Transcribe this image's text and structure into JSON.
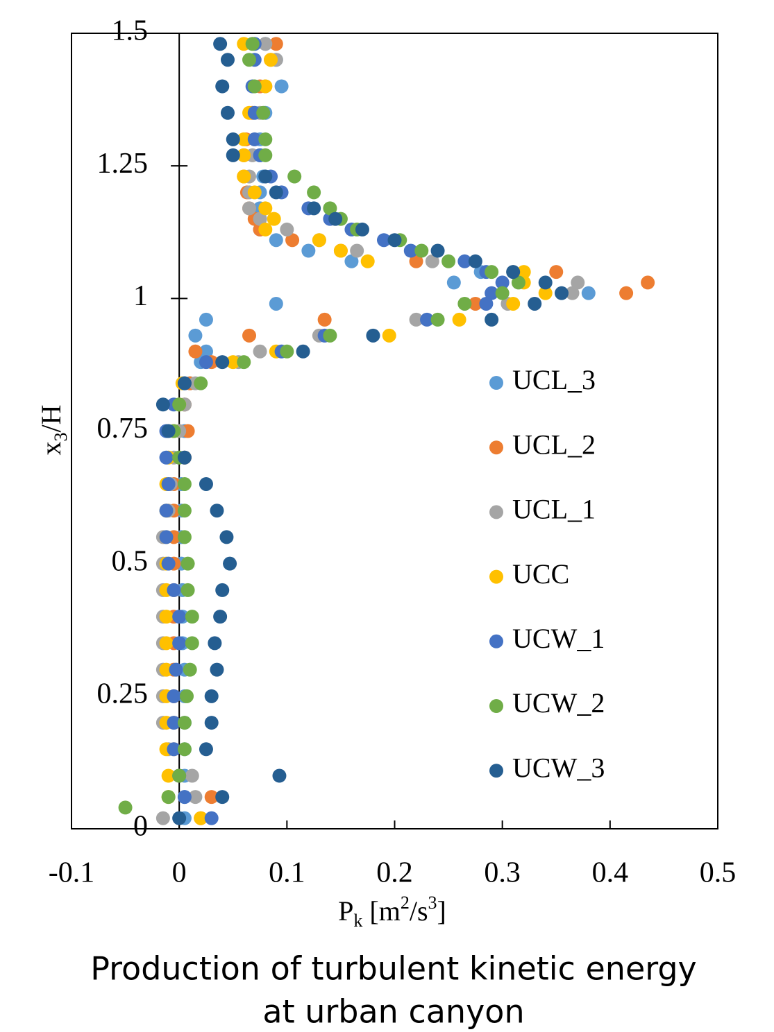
{
  "chart_data": {
    "type": "scatter",
    "title": [
      "Production of turbulent kinetic energy",
      "at urban canyon"
    ],
    "xlabel": [
      "P",
      "k",
      " [m",
      "2",
      "/s",
      "3",
      "]"
    ],
    "ylabel": [
      "x",
      "3",
      "/H"
    ],
    "xlim": [
      -0.1,
      0.5
    ],
    "ylim": [
      0,
      1.5
    ],
    "xticks": [
      -0.1,
      0,
      0.1,
      0.2,
      0.3,
      0.4,
      0.5
    ],
    "yticks": [
      0,
      0.25,
      0.5,
      0.75,
      1,
      1.25,
      1.5
    ],
    "legend": "right",
    "series": [
      {
        "name": "UCL_3",
        "color": "#5b9bd5",
        "x": [
          0.005,
          0.005,
          0.005,
          0.005,
          0.005,
          0.005,
          0.005,
          0.003,
          0.003,
          0.003,
          0.002,
          0.002,
          0.002,
          0.002,
          0.005,
          0.005,
          0.005,
          0.01,
          0.02,
          0.025,
          0.015,
          0.025,
          0.09,
          0.38,
          0.255,
          0.28,
          0.16,
          0.12,
          0.09,
          0.075,
          0.075,
          0.075,
          0.075,
          0.078,
          0.075,
          0.075,
          0.08,
          0.095,
          0.09,
          0.08
        ],
        "y": [
          0.02,
          0.06,
          0.1,
          0.15,
          0.2,
          0.25,
          0.3,
          0.35,
          0.4,
          0.45,
          0.5,
          0.55,
          0.6,
          0.65,
          0.7,
          0.75,
          0.8,
          0.84,
          0.88,
          0.9,
          0.93,
          0.96,
          0.99,
          1.01,
          1.03,
          1.05,
          1.07,
          1.09,
          1.11,
          1.13,
          1.15,
          1.17,
          1.2,
          1.23,
          1.27,
          1.3,
          1.35,
          1.4,
          1.45,
          1.48
        ]
      },
      {
        "name": "UCL_2",
        "color": "#ed7d31",
        "x": [
          0.02,
          0.03,
          0,
          -0.005,
          -0.005,
          -0.005,
          -0.005,
          -0.005,
          -0.005,
          -0.005,
          -0.005,
          -0.005,
          -0.005,
          -0.005,
          0.005,
          0.008,
          0.005,
          0.01,
          0.03,
          0.015,
          0.065,
          0.135,
          0.275,
          0.415,
          0.435,
          0.35,
          0.22,
          0.15,
          0.105,
          0.075,
          0.07,
          0.065,
          0.063,
          0.06,
          0.06,
          0.062,
          0.068,
          0.075,
          0.085,
          0.09
        ],
        "y": [
          0.02,
          0.06,
          0.1,
          0.15,
          0.2,
          0.25,
          0.3,
          0.35,
          0.4,
          0.45,
          0.5,
          0.55,
          0.6,
          0.65,
          0.7,
          0.75,
          0.8,
          0.84,
          0.88,
          0.9,
          0.93,
          0.96,
          0.99,
          1.01,
          1.03,
          1.05,
          1.07,
          1.09,
          1.11,
          1.13,
          1.15,
          1.17,
          1.2,
          1.23,
          1.27,
          1.3,
          1.35,
          1.4,
          1.45,
          1.48
        ]
      },
      {
        "name": "UCL_1",
        "color": "#a5a5a5",
        "x": [
          -0.015,
          0.015,
          0.012,
          -0.01,
          -0.015,
          -0.015,
          -0.015,
          -0.015,
          -0.015,
          -0.015,
          -0.015,
          -0.015,
          -0.01,
          -0.008,
          -0.005,
          0,
          0.005,
          0.015,
          0.055,
          0.075,
          0.13,
          0.22,
          0.305,
          0.365,
          0.37,
          0.31,
          0.235,
          0.165,
          0.13,
          0.1,
          0.075,
          0.065,
          0.065,
          0.065,
          0.068,
          0.07,
          0.075,
          0.08,
          0.09,
          0.08
        ],
        "y": [
          0.02,
          0.06,
          0.1,
          0.15,
          0.2,
          0.25,
          0.3,
          0.35,
          0.4,
          0.45,
          0.5,
          0.55,
          0.6,
          0.65,
          0.7,
          0.75,
          0.8,
          0.84,
          0.88,
          0.9,
          0.93,
          0.96,
          0.99,
          1.01,
          1.03,
          1.05,
          1.07,
          1.09,
          1.11,
          1.13,
          1.15,
          1.17,
          1.2,
          1.23,
          1.27,
          1.3,
          1.35,
          1.4,
          1.45,
          1.48
        ]
      },
      {
        "name": "UCC",
        "color": "#ffc000",
        "x": [
          0.02,
          -0.01,
          -0.01,
          -0.012,
          -0.012,
          -0.012,
          -0.012,
          -0.012,
          -0.012,
          -0.012,
          -0.012,
          -0.012,
          -0.012,
          -0.012,
          -0.01,
          -0.005,
          0,
          0.003,
          0.05,
          0.09,
          0.195,
          0.26,
          0.31,
          0.34,
          0.32,
          0.32,
          0.175,
          0.15,
          0.13,
          0.08,
          0.088,
          0.08,
          0.07,
          0.06,
          0.06,
          0.06,
          0.065,
          0.08,
          0.085,
          0.06
        ],
        "y": [
          0.02,
          0.06,
          0.1,
          0.15,
          0.2,
          0.25,
          0.3,
          0.35,
          0.4,
          0.45,
          0.5,
          0.55,
          0.6,
          0.65,
          0.7,
          0.75,
          0.8,
          0.84,
          0.88,
          0.9,
          0.93,
          0.96,
          0.99,
          1.01,
          1.03,
          1.05,
          1.07,
          1.09,
          1.11,
          1.13,
          1.15,
          1.17,
          1.2,
          1.23,
          1.27,
          1.3,
          1.35,
          1.4,
          1.45,
          1.48
        ]
      },
      {
        "name": "UCW_1",
        "color": "#4472c4",
        "x": [
          0.03,
          0.005,
          0,
          -0.005,
          -0.005,
          -0.005,
          -0.003,
          0,
          0,
          -0.005,
          -0.01,
          -0.012,
          -0.012,
          -0.01,
          -0.012,
          -0.012,
          -0.005,
          0.005,
          0.025,
          0.095,
          0.135,
          0.23,
          0.285,
          0.29,
          0.3,
          0.285,
          0.265,
          0.215,
          0.19,
          0.16,
          0.14,
          0.12,
          0.095,
          0.085,
          0.075,
          0.07,
          0.07,
          0.068,
          0.07,
          0.07
        ],
        "y": [
          0.02,
          0.06,
          0.1,
          0.15,
          0.2,
          0.25,
          0.3,
          0.35,
          0.4,
          0.45,
          0.5,
          0.55,
          0.6,
          0.65,
          0.7,
          0.75,
          0.8,
          0.84,
          0.88,
          0.9,
          0.93,
          0.96,
          0.99,
          1.01,
          1.03,
          1.05,
          1.07,
          1.09,
          1.11,
          1.13,
          1.15,
          1.17,
          1.2,
          1.23,
          1.27,
          1.3,
          1.35,
          1.4,
          1.45,
          1.48
        ]
      },
      {
        "name": "UCW_2",
        "color": "#70ad47",
        "x": [
          -0.05,
          -0.01,
          0,
          0.005,
          0.005,
          0.007,
          0.01,
          0.012,
          0.012,
          0.008,
          0.008,
          0.005,
          0.005,
          0.005,
          0,
          -0.005,
          0,
          0.02,
          0.06,
          0.1,
          0.14,
          0.24,
          0.265,
          0.3,
          0.315,
          0.29,
          0.25,
          0.225,
          0.205,
          0.165,
          0.15,
          0.14,
          0.125,
          0.107,
          0.08,
          0.08,
          0.078,
          0.07,
          0.065,
          0.068
        ],
        "y": [
          0.04,
          0.06,
          0.1,
          0.15,
          0.2,
          0.25,
          0.3,
          0.35,
          0.4,
          0.45,
          0.5,
          0.55,
          0.6,
          0.65,
          0.7,
          0.75,
          0.8,
          0.84,
          0.88,
          0.9,
          0.93,
          0.96,
          0.99,
          1.01,
          1.03,
          1.05,
          1.07,
          1.09,
          1.11,
          1.13,
          1.15,
          1.17,
          1.2,
          1.23,
          1.27,
          1.3,
          1.35,
          1.4,
          1.45,
          1.48
        ]
      },
      {
        "name": "UCW_3",
        "color": "#255e91",
        "x": [
          0,
          0.04,
          0.093,
          0.025,
          0.03,
          0.03,
          0.035,
          0.033,
          0.038,
          0.04,
          0.047,
          0.044,
          0.035,
          0.025,
          0.005,
          -0.01,
          -0.015,
          0.005,
          0.04,
          0.115,
          0.18,
          0.29,
          0.33,
          0.355,
          0.34,
          0.31,
          0.275,
          0.24,
          0.2,
          0.17,
          0.145,
          0.125,
          0.09,
          0.08,
          0.05,
          0.05,
          0.045,
          0.04,
          0.045,
          0.038
        ],
        "y": [
          0.02,
          0.06,
          0.1,
          0.15,
          0.2,
          0.25,
          0.3,
          0.35,
          0.4,
          0.45,
          0.5,
          0.55,
          0.6,
          0.65,
          0.7,
          0.75,
          0.8,
          0.84,
          0.88,
          0.9,
          0.93,
          0.96,
          0.99,
          1.01,
          1.03,
          1.05,
          1.07,
          1.09,
          1.11,
          1.13,
          1.15,
          1.17,
          1.2,
          1.23,
          1.27,
          1.3,
          1.35,
          1.4,
          1.45,
          1.48
        ]
      }
    ]
  }
}
